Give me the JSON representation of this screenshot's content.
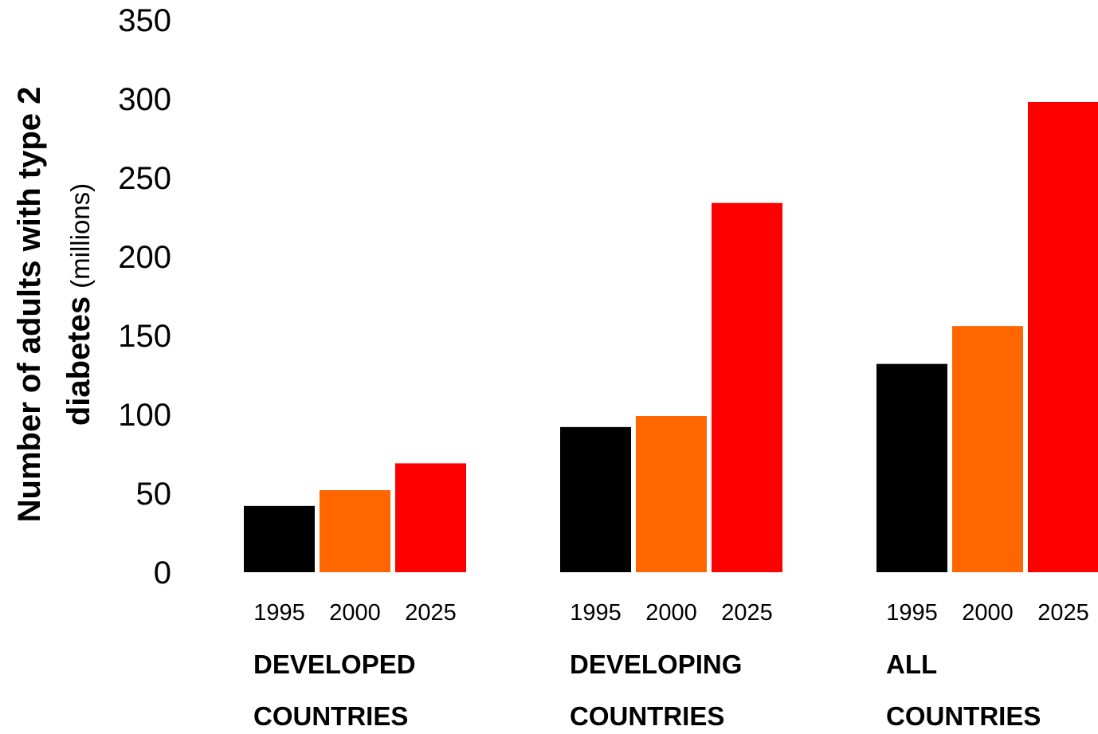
{
  "chart_data": {
    "type": "bar",
    "title": "",
    "ylabel": {
      "line1": "Number of adults with type 2",
      "line2_bold": "diabetes",
      "line2_unit": "(millions)"
    },
    "ylim": [
      0,
      350
    ],
    "yticks": [
      "0",
      "50",
      "100",
      "150",
      "200",
      "250",
      "300",
      "350"
    ],
    "grid": false,
    "legend": "none",
    "groups": [
      {
        "label_line1": "DEVELOPED",
        "label_line2": "COUNTRIES",
        "bars": [
          {
            "year": "1995",
            "value": 42,
            "color": "#000000"
          },
          {
            "year": "2000",
            "value": 52,
            "color": "#ff6600"
          },
          {
            "year": "2025",
            "value": 69,
            "color": "#ff0000"
          }
        ]
      },
      {
        "label_line1": "DEVELOPING",
        "label_line2": "COUNTRIES",
        "bars": [
          {
            "year": "1995",
            "value": 92,
            "color": "#000000"
          },
          {
            "year": "2000",
            "value": 99,
            "color": "#ff6600"
          },
          {
            "year": "2025",
            "value": 234,
            "color": "#ff0000"
          }
        ]
      },
      {
        "label_line1": "ALL",
        "label_line2": "COUNTRIES",
        "bars": [
          {
            "year": "1995",
            "value": 132,
            "color": "#000000"
          },
          {
            "year": "2000",
            "value": 156,
            "color": "#ff6600"
          },
          {
            "year": "2025",
            "value": 298,
            "color": "#ff0000"
          }
        ]
      }
    ]
  }
}
